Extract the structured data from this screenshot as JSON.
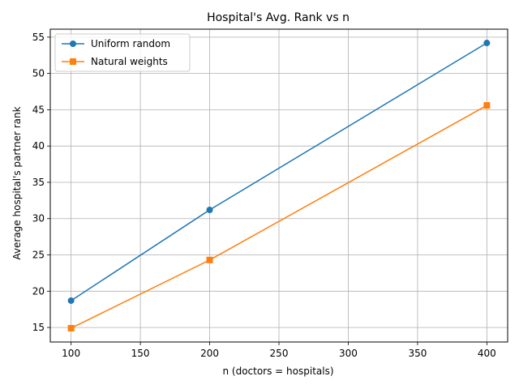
{
  "chart_data": {
    "type": "line",
    "title": "Hospital's Avg. Rank vs n",
    "xlabel": "n (doctors = hospitals)",
    "ylabel": "Average hospital's partner rank",
    "x": [
      100,
      200,
      400
    ],
    "xlim": [
      85,
      415
    ],
    "ylim": [
      13.0,
      56.1
    ],
    "xticks": [
      100,
      150,
      200,
      250,
      300,
      350,
      400
    ],
    "yticks": [
      15,
      20,
      25,
      30,
      35,
      40,
      45,
      50,
      55
    ],
    "grid": true,
    "legend_position": "top-left",
    "series": [
      {
        "name": "Uniform random",
        "values": [
          18.7,
          31.2,
          54.2
        ],
        "color": "#1f77b4",
        "marker": "circle"
      },
      {
        "name": "Natural weights",
        "values": [
          14.9,
          24.3,
          45.6
        ],
        "color": "#ff7f0e",
        "marker": "square"
      }
    ]
  }
}
